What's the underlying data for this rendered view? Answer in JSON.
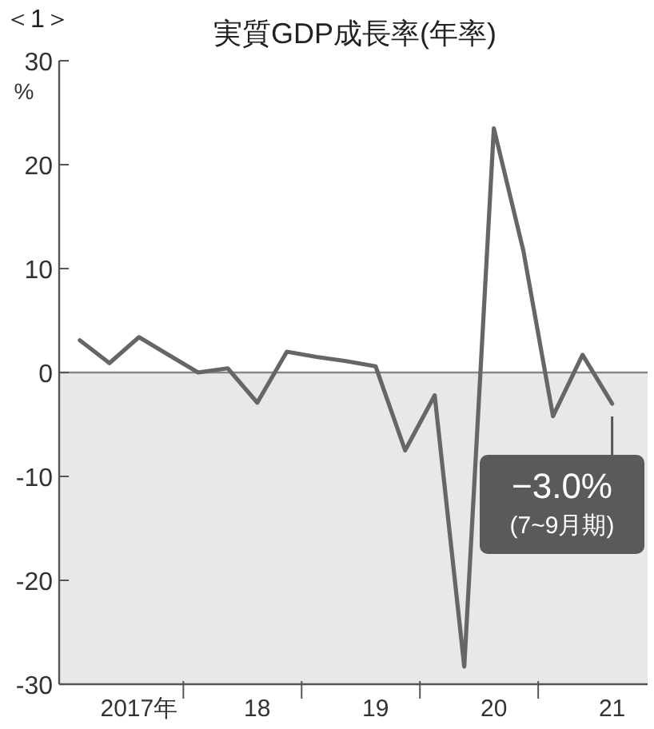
{
  "chart_data": {
    "type": "line",
    "title": "実質GDP成長率(年率)",
    "ylabel": "%",
    "annotations": [
      "＜1＞",
      {
        "text": "−3.0%\n(7~9月期)",
        "x": "21",
        "y": -3.0
      }
    ],
    "categories": [
      null,
      null,
      "2017年",
      null,
      null,
      null,
      "18",
      null,
      null,
      null,
      "19",
      null,
      null,
      null,
      "20",
      null,
      null,
      null,
      "21"
    ],
    "series": [
      {
        "color": "#666666",
        "values": [
          3.1,
          0.9,
          3.4,
          1.7,
          0.0,
          0.4,
          -2.9,
          2.0,
          1.5,
          1.1,
          0.6,
          -7.5,
          -2.2,
          -28.3,
          23.5,
          11.7,
          -4.2,
          1.7,
          -3.0
        ]
      }
    ],
    "ylim": [
      -30,
      30
    ],
    "yticks": [
      30,
      20,
      10,
      0,
      -10,
      -20,
      -30
    ],
    "bands": [
      {
        "axis": "y",
        "from": -30,
        "to": 0,
        "color": "#e8e8e8"
      }
    ],
    "ref_lines": [
      {
        "axis": "y",
        "value": 0,
        "color": "#888888"
      }
    ],
    "grid": false,
    "marker": "none",
    "line_style": "solid"
  }
}
